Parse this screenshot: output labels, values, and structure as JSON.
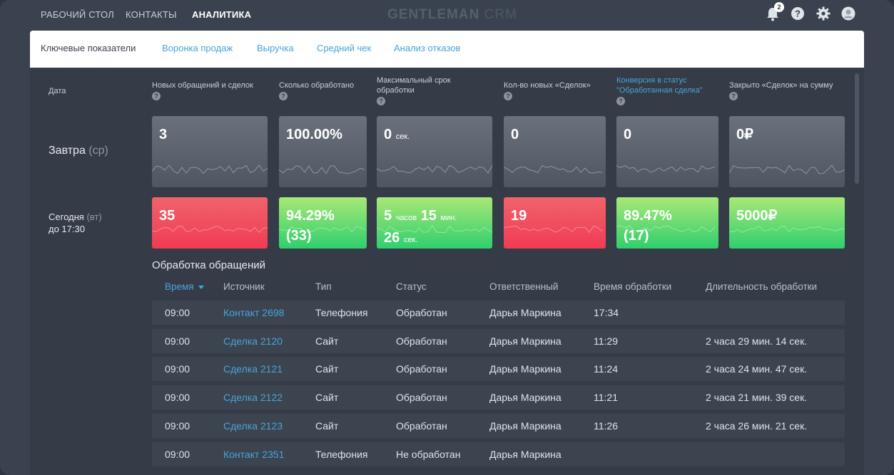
{
  "nav": {
    "items": [
      "Рабочий стол",
      "Контакты",
      "Аналитика"
    ],
    "active_index": 2,
    "logo_bold": "GENTLEMAN",
    "logo_thin": "CRM",
    "notification_count": "2",
    "icons": [
      "bell-icon",
      "help-icon",
      "gear-icon",
      "user-icon"
    ]
  },
  "tabs": [
    "Ключевые показатели",
    "Воронка продаж",
    "Выручка",
    "Средний чек",
    "Анализ отказов"
  ],
  "metrics": {
    "date_label": "Дата",
    "columns": [
      "Новых обращений и сделок",
      "Сколько обработано",
      "Максимальный срок обработки",
      "Кол-во новых «Сделок»",
      "Конверсия в статус \"Обработанная сделка\"",
      "Закрыто «Сделок» на сумму"
    ],
    "row1": {
      "label": "Завтра",
      "label_day": "(ср)",
      "values": [
        {
          "text": "3"
        },
        {
          "text": "100.00%"
        },
        {
          "text": "0",
          "unit": "сек."
        },
        {
          "text": "0"
        },
        {
          "text": "0"
        },
        {
          "text": "0₽"
        }
      ]
    },
    "row2": {
      "label": "Сегодня",
      "label_day": "(вт)",
      "label_time": "до 17:30",
      "values": [
        {
          "line1": "35",
          "status": "red"
        },
        {
          "line1": "94.29%",
          "line2": "(33)",
          "status": "green"
        },
        {
          "n1": "5",
          "u1": "часов",
          "n2": "15",
          "u2": "мин.",
          "n3": "26",
          "u3": "сек.",
          "status": "green"
        },
        {
          "line1": "19",
          "status": "red"
        },
        {
          "line1": "89.47%",
          "line2": "(17)",
          "status": "green"
        },
        {
          "line1": "5000₽",
          "status": "green"
        }
      ]
    }
  },
  "table": {
    "title": "Обработка обращений",
    "headers": [
      "Время",
      "Источник",
      "Тип",
      "Статус",
      "Ответственный",
      "Время обработки",
      "Длительность обработки"
    ],
    "rows": [
      [
        "09:00",
        "Контакт 2698",
        "Телефония",
        "Обработан",
        "Дарья Маркина",
        "17:34",
        ""
      ],
      [
        "09:00",
        "Сделка 2120",
        "Сайт",
        "Обработан",
        "Дарья Маркина",
        "11:29",
        "2 часа 29 мин. 14 сек."
      ],
      [
        "09:00",
        "Сделка 2121",
        "Сайт",
        "Обработан",
        "Дарья Маркина",
        "11:24",
        "2 часа 24 мин. 47 сек."
      ],
      [
        "09:00",
        "Сделка 2122",
        "Сайт",
        "Обработан",
        "Дарья Маркина",
        "11:21",
        "2 часа 21 мин. 39 сек."
      ],
      [
        "09:00",
        "Сделка 2123",
        "Сайт",
        "Обработан",
        "Дарья Маркина",
        "11:26",
        "2 часа 26 мин. 21 сек."
      ],
      [
        "09:00",
        "Контакт 2351",
        "Телефония",
        "Не обработан",
        "Дарья Маркина",
        "",
        ""
      ]
    ]
  },
  "colors": {
    "background": "#3a424f",
    "panel": "#353c48",
    "accent": "#4aa3d8",
    "red": "#f04a5c",
    "green": "#4fd872"
  }
}
